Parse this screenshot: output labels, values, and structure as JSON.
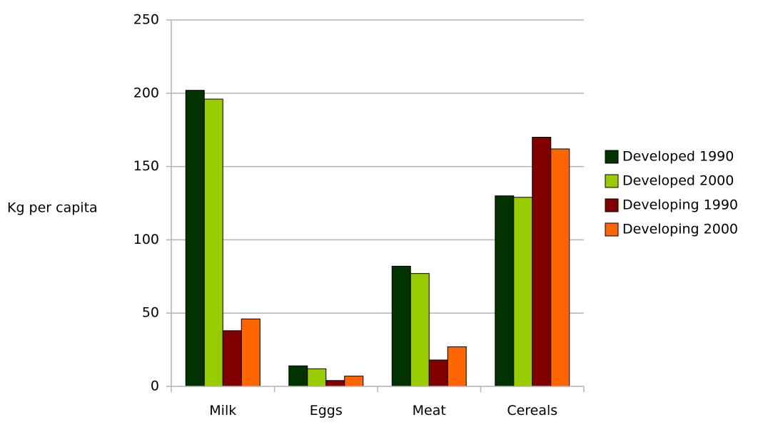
{
  "chart_data": {
    "type": "bar",
    "title": "",
    "xlabel": "",
    "ylabel": "Kg per capita",
    "categories": [
      "Milk",
      "Eggs",
      "Meat",
      "Cereals"
    ],
    "series": [
      {
        "name": "Developed 1990",
        "values": [
          202,
          14,
          82,
          130
        ],
        "color": "#003300"
      },
      {
        "name": "Developed 2000",
        "values": [
          196,
          12,
          77,
          129
        ],
        "color": "#99cc00"
      },
      {
        "name": "Developing 1990",
        "values": [
          38,
          4,
          18,
          170
        ],
        "color": "#800000"
      },
      {
        "name": "Developing 2000",
        "values": [
          46,
          7,
          27,
          162
        ],
        "color": "#ff6600"
      }
    ],
    "ylim": [
      0,
      250
    ],
    "yticks": [
      0,
      50,
      100,
      150,
      200,
      250
    ],
    "grid": true,
    "legend_position": "right"
  }
}
